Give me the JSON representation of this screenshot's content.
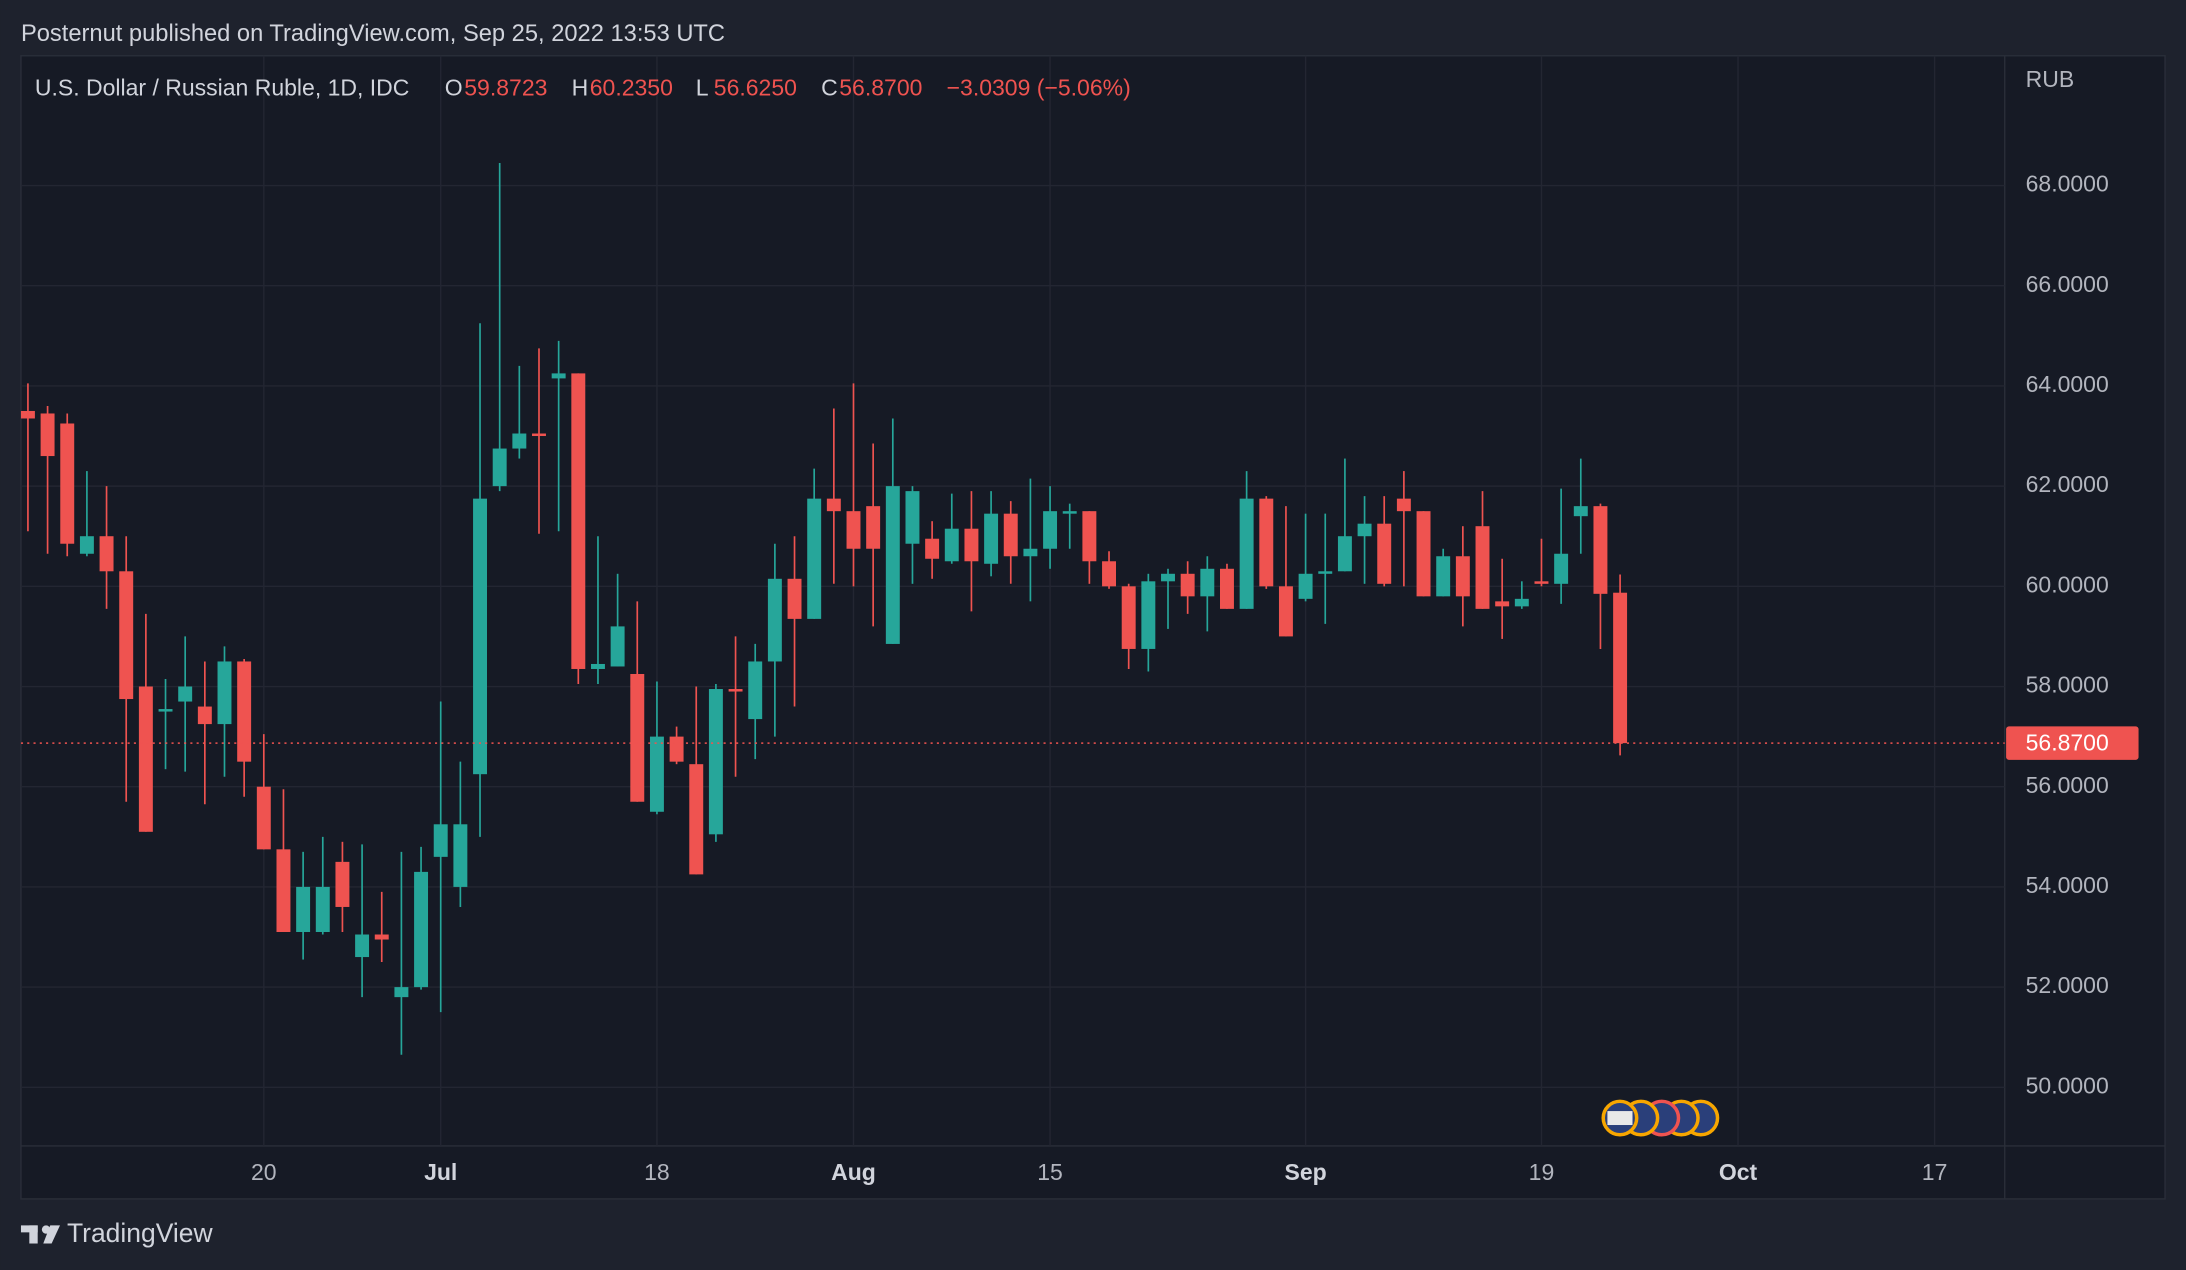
{
  "published": "Posternut published on TradingView.com, Sep 25, 2022 13:53 UTC",
  "brand": "TradingView",
  "chart_data": {
    "type": "candlestick",
    "symbol": "U.S. Dollar / Russian Ruble, 1D, IDC",
    "ohlc_legend": [
      {
        "label": "O",
        "value": "59.8723"
      },
      {
        "label": "H",
        "value": "60.2350"
      },
      {
        "label": "L",
        "value": "56.6250"
      },
      {
        "label": "C",
        "value": "56.8700"
      }
    ],
    "change": "−3.0309 (−5.06%)",
    "y_unit": "RUB",
    "categories": [
      null,
      null,
      null,
      null,
      null,
      null,
      null,
      null,
      null,
      null,
      null,
      null,
      "20",
      null,
      null,
      null,
      null,
      null,
      null,
      null,
      null,
      "Jul",
      null,
      null,
      null,
      null,
      null,
      null,
      null,
      null,
      null,
      null,
      "18",
      null,
      null,
      null,
      null,
      null,
      null,
      null,
      null,
      null,
      "Aug",
      null,
      null,
      null,
      null,
      null,
      null,
      null,
      null,
      null,
      "15",
      null,
      null,
      null,
      null,
      null,
      null,
      null,
      null,
      null,
      null,
      null,
      null,
      "Sep",
      null,
      null,
      null,
      null,
      null,
      null,
      null,
      null,
      null,
      null,
      null,
      "19",
      null,
      null,
      null,
      null,
      null,
      null,
      null,
      null,
      null,
      "Oct",
      null,
      null,
      null,
      null,
      null,
      null,
      null,
      null,
      null,
      "17",
      null,
      null,
      null
    ],
    "open": [
      63.5,
      63.45,
      63.25,
      60.65,
      61.0,
      60.3,
      58.0,
      57.5,
      57.7,
      57.6,
      57.25,
      58.5,
      56.0,
      54.75,
      53.1,
      53.1,
      54.5,
      52.6,
      53.05,
      51.8,
      52.0,
      54.6,
      54.0,
      56.25,
      62.0,
      62.75,
      63.05,
      64.15,
      64.25,
      58.35,
      58.4,
      58.25,
      55.5,
      57.0,
      56.45,
      55.05,
      57.95,
      57.35,
      58.5,
      60.15,
      59.35,
      61.75,
      61.5,
      61.6,
      58.85,
      60.85,
      60.95,
      60.5,
      61.15,
      60.45,
      61.45,
      60.6,
      60.75,
      61.45,
      61.5,
      60.5,
      60.0,
      58.75,
      60.1,
      60.25,
      59.8,
      60.35,
      59.55,
      61.75,
      60.0,
      59.75,
      60.25,
      60.3,
      61.0,
      61.25,
      61.75,
      61.5,
      59.8,
      60.6,
      61.2,
      59.7,
      59.6,
      60.1,
      60.05,
      61.4,
      61.6,
      59.8723,
      null,
      null,
      null,
      null,
      null,
      null,
      null,
      null,
      null,
      null,
      null,
      null,
      null,
      null,
      null,
      null,
      null,
      null,
      null
    ],
    "high": [
      64.05,
      63.6,
      63.45,
      62.3,
      62.0,
      61.0,
      59.45,
      58.15,
      59.0,
      58.5,
      58.8,
      58.55,
      57.05,
      55.95,
      54.7,
      55.0,
      54.9,
      54.85,
      53.9,
      54.7,
      54.8,
      57.7,
      56.5,
      65.25,
      68.45,
      64.4,
      64.75,
      64.9,
      64.25,
      61.0,
      60.25,
      59.7,
      58.1,
      57.2,
      58.0,
      58.05,
      59.0,
      58.85,
      60.85,
      61.0,
      62.35,
      63.55,
      64.05,
      62.85,
      63.35,
      62.0,
      61.3,
      61.85,
      61.9,
      61.9,
      61.7,
      62.15,
      62.0,
      61.65,
      61.5,
      60.7,
      60.05,
      60.25,
      60.35,
      60.5,
      60.6,
      60.45,
      62.3,
      61.8,
      61.6,
      61.45,
      61.45,
      62.55,
      61.8,
      61.8,
      62.3,
      61.5,
      60.75,
      61.2,
      61.9,
      60.55,
      60.1,
      60.95,
      61.95,
      62.55,
      61.65,
      60.235,
      null,
      null,
      null,
      null,
      null,
      null,
      null,
      null,
      null,
      null,
      null,
      null,
      null,
      null,
      null,
      null,
      null,
      null,
      null
    ],
    "low": [
      61.1,
      60.65,
      60.6,
      60.6,
      59.55,
      55.7,
      55.1,
      56.35,
      56.3,
      55.65,
      56.2,
      55.8,
      54.75,
      53.1,
      52.55,
      53.05,
      53.1,
      51.8,
      52.5,
      50.65,
      51.95,
      51.5,
      53.6,
      55.0,
      61.9,
      62.55,
      61.05,
      61.1,
      58.05,
      58.05,
      58.4,
      55.7,
      55.45,
      56.45,
      54.25,
      54.9,
      56.2,
      56.55,
      57.0,
      57.6,
      59.35,
      60.05,
      60.0,
      59.2,
      58.85,
      60.05,
      60.15,
      60.45,
      59.5,
      60.2,
      60.05,
      59.7,
      60.35,
      60.75,
      60.05,
      59.95,
      58.35,
      58.3,
      59.15,
      59.45,
      59.1,
      59.55,
      59.55,
      59.95,
      59.0,
      59.7,
      59.25,
      60.3,
      60.05,
      60.0,
      60.0,
      59.8,
      59.8,
      59.2,
      59.55,
      58.95,
      59.55,
      60.0,
      59.65,
      60.65,
      58.75,
      56.625,
      null,
      null,
      null,
      null,
      null,
      null,
      null,
      null,
      null,
      null,
      null,
      null,
      null,
      null,
      null,
      null,
      null,
      null,
      null
    ],
    "close": [
      63.35,
      62.6,
      60.85,
      61.0,
      60.3,
      57.75,
      55.1,
      57.55,
      58.0,
      57.25,
      58.5,
      56.5,
      54.75,
      53.1,
      54.0,
      54.0,
      53.6,
      53.05,
      52.95,
      52.0,
      54.3,
      55.25,
      55.25,
      61.75,
      62.75,
      63.05,
      63.0,
      64.25,
      58.35,
      58.45,
      59.2,
      55.7,
      57.0,
      56.5,
      54.25,
      57.95,
      57.9,
      58.5,
      60.15,
      59.35,
      61.75,
      61.5,
      60.75,
      60.75,
      62.0,
      61.9,
      60.55,
      61.15,
      60.5,
      61.45,
      60.6,
      60.75,
      61.5,
      61.5,
      60.5,
      60.0,
      58.75,
      60.1,
      60.25,
      59.8,
      60.35,
      59.55,
      61.75,
      60.0,
      59.0,
      60.25,
      60.3,
      61.0,
      61.25,
      60.05,
      61.5,
      59.8,
      60.6,
      59.8,
      59.55,
      59.6,
      59.75,
      60.05,
      60.65,
      61.6,
      59.85,
      56.87,
      null,
      null,
      null,
      null,
      null,
      null,
      null,
      null,
      null,
      null,
      null,
      null,
      null,
      null,
      null,
      null,
      null,
      null,
      null
    ],
    "up_color": "#26a69a",
    "down_color": "#ef5350",
    "ylim": [
      48.83,
      70.59
    ],
    "yticks": [
      {
        "value": 50,
        "label": "50.0000"
      },
      {
        "value": 52,
        "label": "52.0000"
      },
      {
        "value": 54,
        "label": "54.0000"
      },
      {
        "value": 56,
        "label": "56.0000"
      },
      {
        "value": 58,
        "label": "58.0000"
      },
      {
        "value": 60,
        "label": "60.0000"
      },
      {
        "value": 62,
        "label": "62.0000"
      },
      {
        "value": 64,
        "label": "64.0000"
      },
      {
        "value": 66,
        "label": "66.0000"
      },
      {
        "value": 68,
        "label": "68.0000"
      }
    ],
    "last_price": {
      "value": 56.87,
      "label": "56.8700"
    },
    "grid": true
  }
}
